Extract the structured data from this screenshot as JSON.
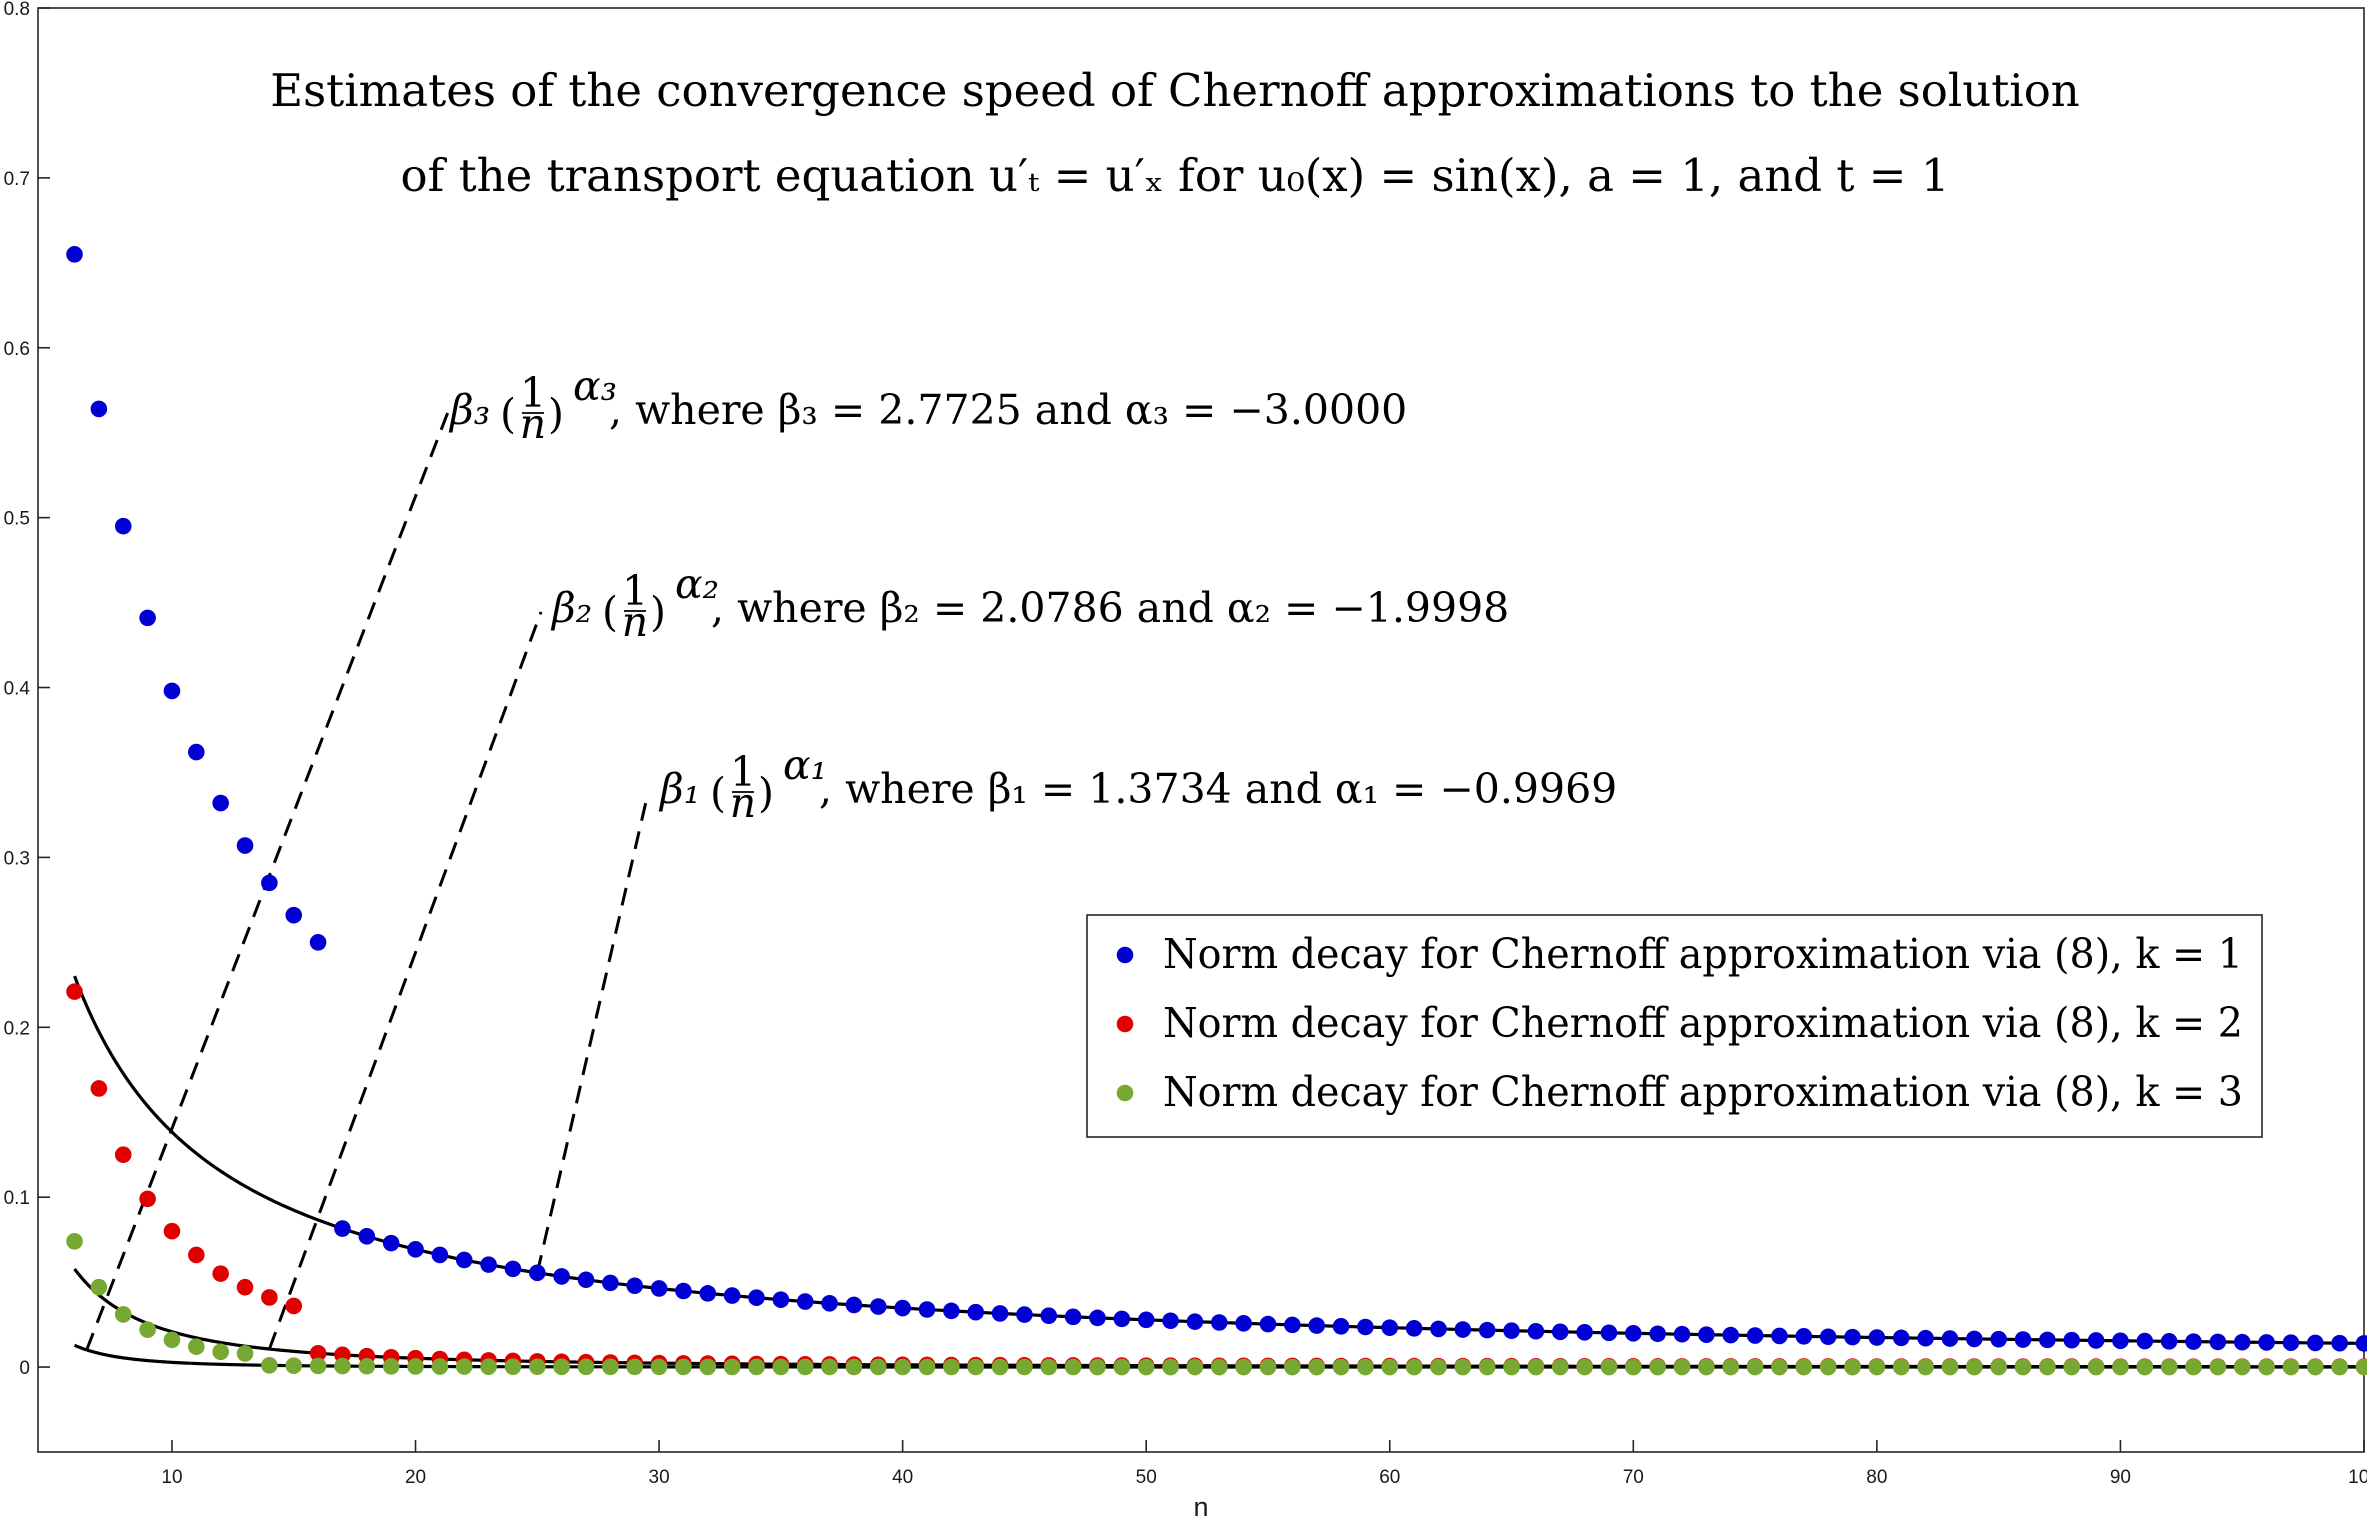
{
  "chart_data": {
    "type": "scatter",
    "title_lines": [
      "Estimates of the convergence speed of Chernoff approximations to the solution",
      "of the transport equation u′ₜ = u′ₓ for u₀(x) = sin(x), a = 1, and t = 1"
    ],
    "xlabel": "n",
    "ylabel": "",
    "xlim": [
      4.5,
      100
    ],
    "ylim": [
      -0.05,
      0.8
    ],
    "xticks": [
      10,
      20,
      30,
      40,
      50,
      60,
      70,
      80,
      90,
      100
    ],
    "yticks": [
      0,
      0.1,
      0.2,
      0.3,
      0.4,
      0.5,
      0.6,
      0.7,
      0.8
    ],
    "x_range": [
      6,
      100
    ],
    "grid": false,
    "legend_position": "center-right",
    "series": [
      {
        "name": "Norm decay for Chernoff approximation via (8), k = 1",
        "color": "#0000d4",
        "fit": {
          "beta": 1.3734,
          "alpha": -0.9969
        },
        "first_values": [
          0.655,
          0.564,
          0.495,
          0.441,
          0.398,
          0.362,
          0.332,
          0.307,
          0.285,
          0.266,
          0.25
        ],
        "last_value": 0.04
      },
      {
        "name": "Norm decay for Chernoff approximation via (8), k = 2",
        "color": "#e00000",
        "fit": {
          "beta": 2.0786,
          "alpha": -1.9998
        },
        "first_values": [
          0.221,
          0.164,
          0.125,
          0.099,
          0.08,
          0.066,
          0.055,
          0.047,
          0.041,
          0.036
        ],
        "last_value": 0.002
      },
      {
        "name": "Norm decay for Chernoff approximation via (8), k = 3",
        "color": "#76a832",
        "fit": {
          "beta": 2.7725,
          "alpha": -3.0
        },
        "first_values": [
          0.074,
          0.047,
          0.031,
          0.022,
          0.016,
          0.012,
          0.009,
          0.008
        ],
        "last_value": 0.0
      }
    ],
    "annotations": [
      {
        "symbol": "β₃",
        "exponent": "α₃",
        "text": ", where β₃ = 2.7725 and α₃ = −3.0000"
      },
      {
        "symbol": "β₂",
        "exponent": "α₂",
        "text": ", where β₂ = 2.0786 and α₂ = −1.9998"
      },
      {
        "symbol": "β₁",
        "exponent": "α₁",
        "text": ", where β₁ = 1.3734 and α₁ = −0.9969"
      }
    ],
    "fraction_numerator": "1",
    "fraction_denominator": "n"
  }
}
